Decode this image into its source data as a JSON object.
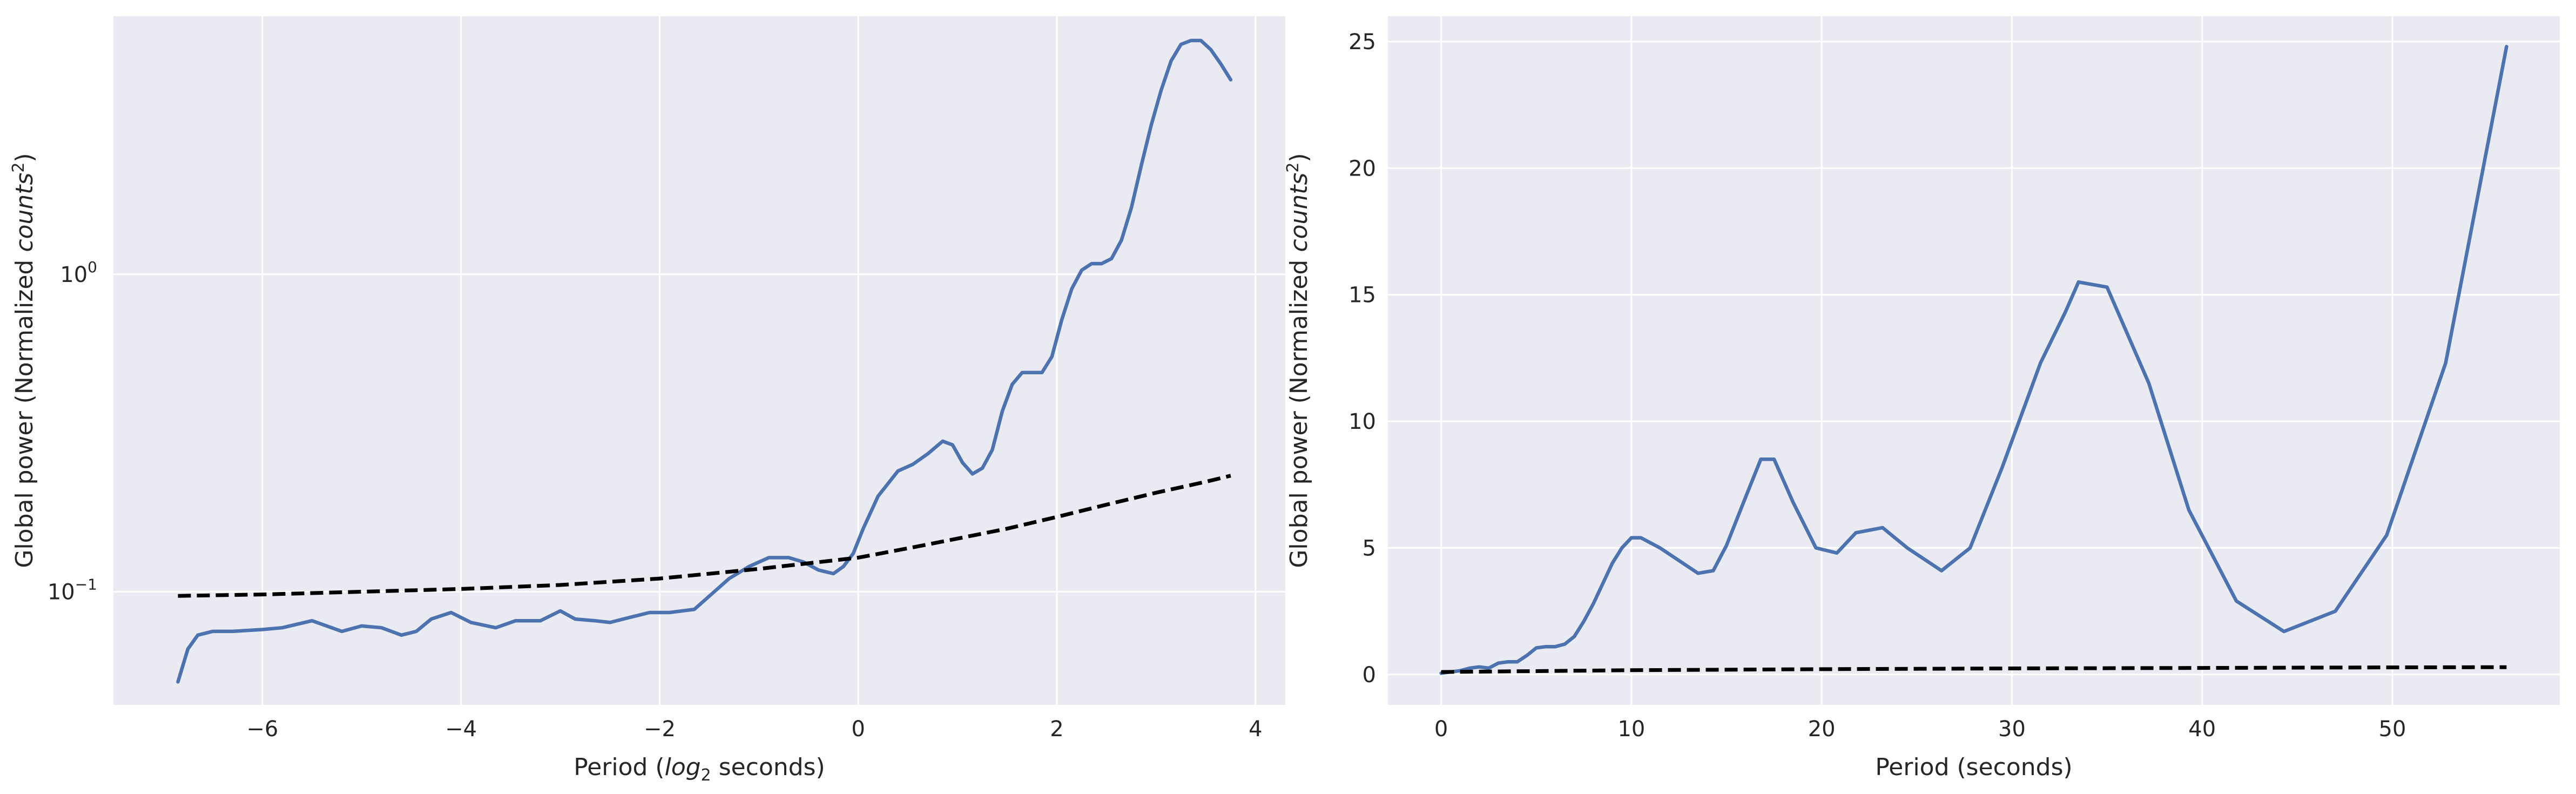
{
  "colors": {
    "axes_background": "#EAEAF2",
    "grid": "#FFFFFF",
    "series_power": "#4C72B0",
    "series_significance": "#000000",
    "text": "#262626"
  },
  "chart_data": [
    {
      "type": "line",
      "xlabel_prefix": "Period (",
      "xlabel_math": "log",
      "xlabel_sub": "2",
      "xlabel_suffix": " seconds)",
      "ylabel_prefix": "Global power (Normalized ",
      "ylabel_math": "counts",
      "ylabel_sup": "2",
      "ylabel_suffix": ")",
      "xlim": [
        -7.5,
        4.3
      ],
      "ylim": [
        0.044,
        6.5
      ],
      "yscale": "log",
      "grid": true,
      "xticks": [
        -6,
        -4,
        -2,
        0,
        2,
        4
      ],
      "xtick_labels": [
        "−6",
        "−4",
        "−2",
        "0",
        "2",
        "4"
      ],
      "yticks": [
        0.1,
        1
      ],
      "ytick_base": [
        "10",
        "10"
      ],
      "ytick_exp": [
        "−1",
        "0"
      ],
      "series": [
        {
          "style": "solid",
          "x": [
            -6.85,
            -6.75,
            -6.65,
            -6.5,
            -6.3,
            -6.0,
            -5.8,
            -5.5,
            -5.2,
            -5.0,
            -4.8,
            -4.6,
            -4.45,
            -4.3,
            -4.1,
            -3.9,
            -3.65,
            -3.45,
            -3.2,
            -3.0,
            -2.85,
            -2.65,
            -2.5,
            -2.3,
            -2.1,
            -1.9,
            -1.65,
            -1.45,
            -1.3,
            -1.1,
            -0.9,
            -0.7,
            -0.55,
            -0.4,
            -0.25,
            -0.15,
            -0.05,
            0.05,
            0.2,
            0.4,
            0.55,
            0.7,
            0.85,
            0.95,
            1.05,
            1.15,
            1.25,
            1.35,
            1.45,
            1.55,
            1.65,
            1.75,
            1.85,
            1.95,
            2.05,
            2.15,
            2.25,
            2.35,
            2.45,
            2.55,
            2.65,
            2.75,
            2.85,
            2.95,
            3.05,
            3.15,
            3.25,
            3.35,
            3.45,
            3.55,
            3.65,
            3.75
          ],
          "y": [
            0.052,
            0.066,
            0.073,
            0.075,
            0.075,
            0.076,
            0.077,
            0.081,
            0.075,
            0.078,
            0.077,
            0.073,
            0.075,
            0.082,
            0.086,
            0.08,
            0.077,
            0.081,
            0.081,
            0.087,
            0.082,
            0.081,
            0.08,
            0.083,
            0.086,
            0.086,
            0.088,
            0.1,
            0.11,
            0.12,
            0.128,
            0.128,
            0.124,
            0.117,
            0.114,
            0.12,
            0.132,
            0.158,
            0.2,
            0.24,
            0.252,
            0.272,
            0.298,
            0.29,
            0.255,
            0.235,
            0.245,
            0.28,
            0.37,
            0.45,
            0.49,
            0.49,
            0.49,
            0.55,
            0.72,
            0.9,
            1.03,
            1.08,
            1.08,
            1.12,
            1.28,
            1.62,
            2.2,
            2.95,
            3.8,
            4.7,
            5.3,
            5.45,
            5.45,
            5.1,
            4.6,
            4.1
          ]
        },
        {
          "style": "dashed",
          "x": [
            -6.85,
            -6.0,
            -5.0,
            -4.0,
            -3.0,
            -2.0,
            -1.0,
            0.0,
            0.5,
            1.0,
            1.5,
            2.0,
            2.5,
            3.0,
            3.5,
            3.75
          ],
          "y": [
            0.097,
            0.098,
            0.1,
            0.102,
            0.105,
            0.11,
            0.118,
            0.128,
            0.137,
            0.147,
            0.158,
            0.172,
            0.188,
            0.205,
            0.222,
            0.232
          ]
        }
      ]
    },
    {
      "type": "line",
      "xlabel": "Period (seconds)",
      "ylabel_prefix": "Global power (Normalized ",
      "ylabel_math": "counts",
      "ylabel_sup": "2",
      "ylabel_suffix": ")",
      "xlim": [
        -2.8,
        58.8
      ],
      "ylim": [
        -1.2,
        26.0
      ],
      "yscale": "linear",
      "grid": true,
      "xticks": [
        0,
        10,
        20,
        30,
        40,
        50
      ],
      "xtick_labels": [
        "0",
        "10",
        "20",
        "30",
        "40",
        "50"
      ],
      "yticks": [
        0,
        5,
        10,
        15,
        20,
        25
      ],
      "ytick_labels": [
        "0",
        "5",
        "10",
        "15",
        "20",
        "25"
      ],
      "series": [
        {
          "style": "solid",
          "x": [
            0.0,
            1.0,
            1.5,
            2.0,
            2.5,
            3.0,
            3.5,
            4.0,
            4.5,
            5.0,
            5.5,
            6.0,
            6.5,
            7.0,
            7.5,
            8.0,
            8.5,
            9.0,
            9.5,
            10.0,
            10.5,
            11.0,
            11.5,
            12.5,
            13.5,
            14.3,
            15.0,
            16.0,
            16.8,
            17.5,
            18.5,
            19.7,
            20.8,
            21.8,
            23.2,
            24.5,
            26.3,
            27.8,
            29.5,
            31.5,
            32.8,
            33.5,
            35.0,
            37.2,
            39.3,
            41.8,
            44.3,
            47.0,
            49.7,
            52.8,
            56.0
          ],
          "y": [
            0.05,
            0.15,
            0.25,
            0.3,
            0.25,
            0.45,
            0.5,
            0.5,
            0.75,
            1.05,
            1.1,
            1.1,
            1.2,
            1.5,
            2.1,
            2.8,
            3.6,
            4.4,
            5.0,
            5.4,
            5.4,
            5.2,
            5.0,
            4.5,
            4.0,
            4.1,
            5.1,
            7.0,
            8.5,
            8.5,
            6.8,
            5.0,
            4.8,
            5.6,
            5.8,
            5.0,
            4.1,
            5.0,
            8.2,
            12.3,
            14.3,
            15.5,
            15.3,
            11.5,
            6.5,
            2.9,
            1.7,
            2.5,
            5.5,
            12.3,
            24.8
          ]
        },
        {
          "style": "dashed",
          "x": [
            0.0,
            10.0,
            20.0,
            30.0,
            40.0,
            50.0,
            56.0
          ],
          "y": [
            0.1,
            0.17,
            0.21,
            0.24,
            0.26,
            0.28,
            0.29
          ]
        }
      ]
    }
  ]
}
